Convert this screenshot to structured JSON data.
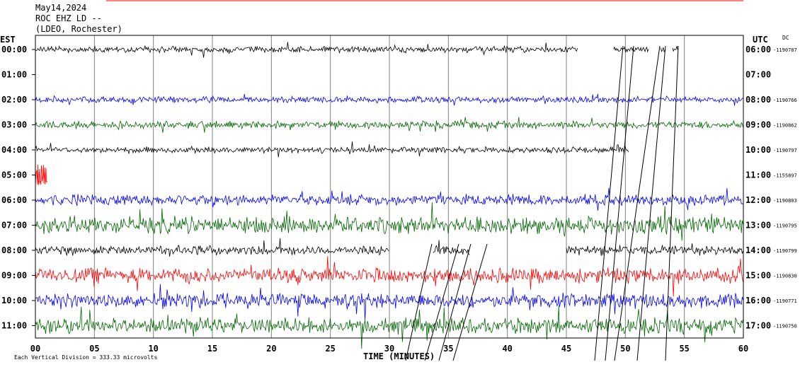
{
  "header": {
    "date": "May14,2024",
    "station": "ROC EHZ LD --",
    "network": "(LDEO, Rochester)"
  },
  "labels": {
    "left_zone": "EST",
    "right_zone": "UTC",
    "dc": "DC",
    "x_axis_title": "TIME (MINUTES)",
    "scale_note": "Each Vertical Division =  333.33 microvolts"
  },
  "colors": {
    "black": "#000000",
    "blue": "#0000ff",
    "green": "#006600",
    "red": "#ff0000",
    "grid": "#808080"
  },
  "chart_data": {
    "type": "line",
    "x_ticks": [
      "00",
      "05",
      "10",
      "15",
      "20",
      "25",
      "30",
      "35",
      "40",
      "45",
      "50",
      "55",
      "60"
    ],
    "xlim": [
      0,
      60
    ],
    "rows": [
      {
        "est": "00:00",
        "utc": "06:00",
        "dc": "-1190787",
        "color": "black",
        "amp": 5,
        "seg": [
          [
            0,
            46
          ],
          [
            49,
            52
          ],
          [
            53,
            53.5
          ],
          [
            54,
            54.5
          ]
        ]
      },
      {
        "est": "01:00",
        "utc": "07:00",
        "dc": "",
        "color": "red",
        "amp": 0,
        "seg": []
      },
      {
        "est": "02:00",
        "utc": "08:00",
        "dc": "-1190766",
        "color": "blue",
        "amp": 5,
        "seg": [
          [
            0,
            60
          ]
        ]
      },
      {
        "est": "03:00",
        "utc": "09:00",
        "dc": "-1190862",
        "color": "green",
        "amp": 6,
        "seg": [
          [
            0,
            60
          ]
        ]
      },
      {
        "est": "04:00",
        "utc": "10:00",
        "dc": "-1190797",
        "color": "black",
        "amp": 5,
        "seg": [
          [
            0,
            50.3
          ]
        ]
      },
      {
        "est": "05:00",
        "utc": "11:00",
        "dc": "-1155897",
        "color": "red",
        "amp": 0,
        "seg": [
          [
            0,
            1
          ]
        ]
      },
      {
        "est": "06:00",
        "utc": "12:00",
        "dc": "-1190803",
        "color": "blue",
        "amp": 9,
        "seg": [
          [
            0,
            60
          ]
        ]
      },
      {
        "est": "07:00",
        "utc": "13:00",
        "dc": "-1190795",
        "color": "green",
        "amp": 14,
        "seg": [
          [
            0,
            60
          ]
        ]
      },
      {
        "est": "08:00",
        "utc": "14:00",
        "dc": "-1190799",
        "color": "black",
        "amp": 8,
        "seg": [
          [
            0,
            30
          ],
          [
            33.7,
            36.8
          ],
          [
            45,
            60
          ]
        ]
      },
      {
        "est": "09:00",
        "utc": "15:00",
        "dc": "-1190830",
        "color": "red",
        "amp": 12,
        "seg": [
          [
            0,
            60
          ]
        ]
      },
      {
        "est": "10:00",
        "utc": "16:00",
        "dc": "-1190771",
        "color": "blue",
        "amp": 12,
        "seg": [
          [
            0,
            60
          ]
        ]
      },
      {
        "est": "11:00",
        "utc": "17:00",
        "dc": "-1190750",
        "color": "green",
        "amp": 13,
        "seg": [
          [
            0,
            60
          ]
        ]
      }
    ]
  }
}
